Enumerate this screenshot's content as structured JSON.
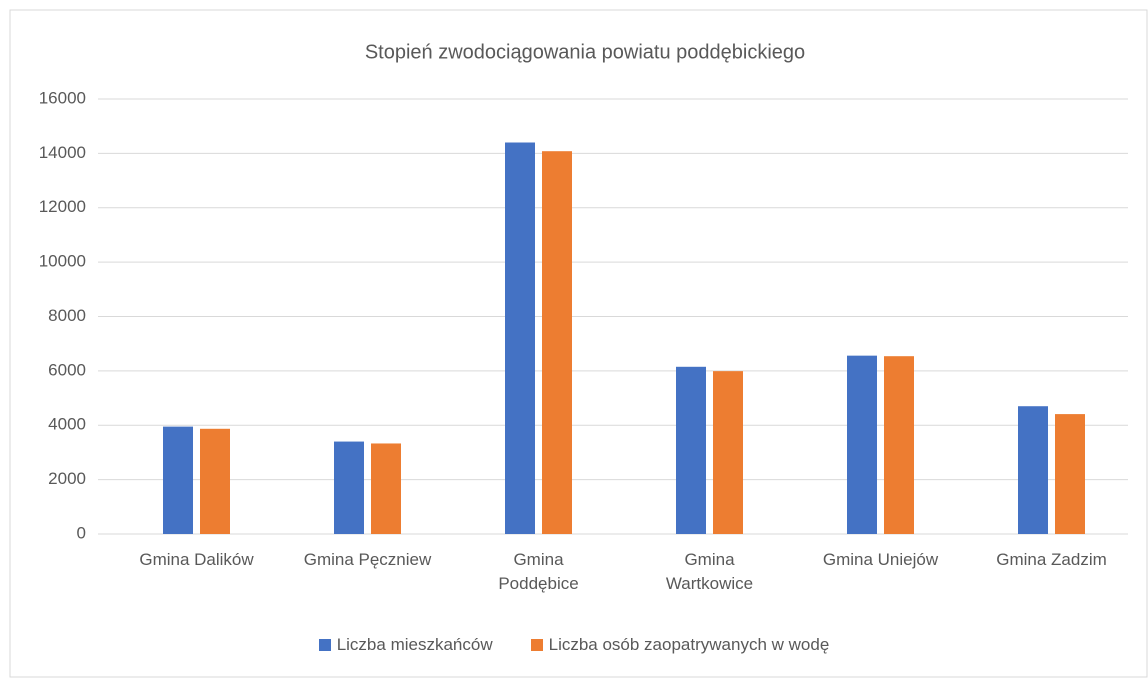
{
  "chart_data": {
    "type": "bar",
    "title": "Stopień zwodociągowania powiatu poddębickiego",
    "categories": [
      "Gmina Dalików",
      "Gmina Pęczniew",
      "Gmina Poddębice",
      "Gmina Wartkowice",
      "Gmina Uniejów",
      "Gmina Zadzim"
    ],
    "series": [
      {
        "name": "Liczba mieszkańców",
        "color": "#4472c4",
        "values": [
          3950,
          3400,
          14400,
          6150,
          6560,
          4700
        ]
      },
      {
        "name": "Liczba osób zaopatrywanych w wodę",
        "color": "#ed7d31",
        "values": [
          3870,
          3330,
          14080,
          5990,
          6540,
          4410
        ]
      }
    ],
    "ylim": [
      0,
      16000
    ],
    "yticks": [
      0,
      2000,
      4000,
      6000,
      8000,
      10000,
      12000,
      14000,
      16000
    ],
    "grid": true,
    "legend": "bottom"
  }
}
